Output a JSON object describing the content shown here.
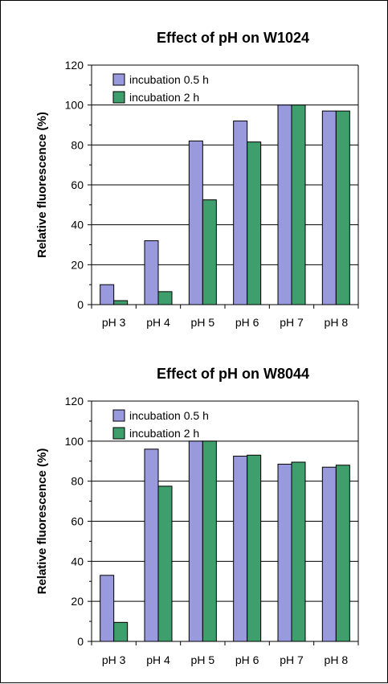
{
  "chart_data": [
    {
      "type": "bar",
      "title": "Effect of pH on W1024",
      "xlabel": "",
      "ylabel": "Relative fluorescence (%)",
      "ylim": [
        0,
        120
      ],
      "yticks": [
        "0",
        "20",
        "40",
        "60",
        "80",
        "100",
        "120"
      ],
      "categories": [
        "pH 3",
        "pH 4",
        "pH 5",
        "pH 6",
        "pH 7",
        "pH 8"
      ],
      "series": [
        {
          "name": "incubation 0.5 h",
          "color": "#9999dd",
          "values": [
            10,
            32,
            82,
            92,
            100,
            97
          ]
        },
        {
          "name": "incubation 2 h",
          "color": "#3e9e6c",
          "values": [
            2,
            6.5,
            52.5,
            81.5,
            100,
            97
          ]
        }
      ],
      "grid": "horizontal",
      "legend": "top-left"
    },
    {
      "type": "bar",
      "title": "Effect of pH on W8044",
      "xlabel": "",
      "ylabel": "Relative fluorescence (%)",
      "ylim": [
        0,
        120
      ],
      "yticks": [
        "0",
        "20",
        "40",
        "60",
        "80",
        "100",
        "120"
      ],
      "categories": [
        "pH 3",
        "pH 4",
        "pH 5",
        "pH 6",
        "pH 7",
        "pH 8"
      ],
      "series": [
        {
          "name": "incubation 0.5 h",
          "color": "#9999dd",
          "values": [
            33,
            96,
            100,
            92.5,
            88.5,
            87
          ]
        },
        {
          "name": "incubation 2 h",
          "color": "#3e9e6c",
          "values": [
            9.5,
            77.5,
            100,
            93,
            89.5,
            88
          ]
        }
      ],
      "grid": "horizontal",
      "legend": "top-left"
    }
  ]
}
